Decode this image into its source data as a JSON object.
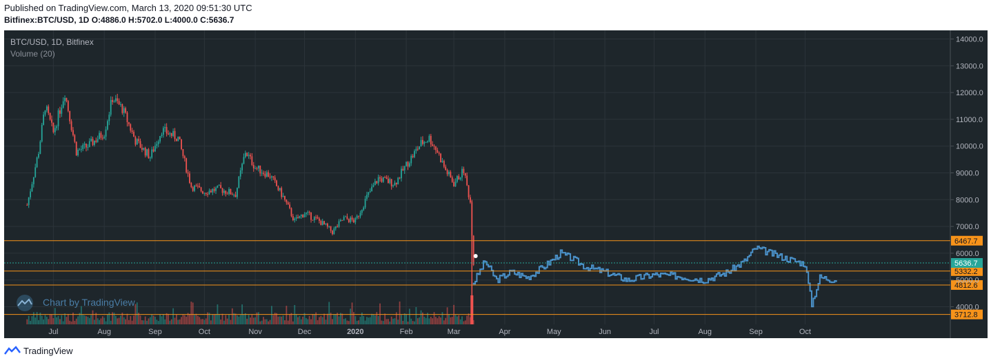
{
  "header": {
    "published": "Published on TradingView.com, March 13, 2020 09:51:30 UTC",
    "symbol": "Bitfinex:BTC/USD, 1D",
    "ohlc": "O:4886.0 H:5702.0 L:4000.0 C:5636.7"
  },
  "legend": {
    "title": "BTC/USD, 1D, Bitfinex",
    "volume": "Volume (20)"
  },
  "watermark": "Chart by TradingView",
  "footer": {
    "brand": "TradingView"
  },
  "colors": {
    "background": "#1e262b",
    "up": "#26a69a",
    "down": "#ef5350",
    "projection": "#4a90c8",
    "level": "#f7931a",
    "current": "#26a69a"
  },
  "chart_data": {
    "type": "line",
    "title": "BTC/USD, 1D, Bitfinex",
    "ylim": [
      3600,
      14300
    ],
    "x_ticks": [
      "Jul",
      "Aug",
      "Sep",
      "Oct",
      "Nov",
      "Dec",
      "2020",
      "Feb",
      "Mar",
      "Apr",
      "May",
      "Jun",
      "Jul",
      "Aug",
      "Sep",
      "Oct"
    ],
    "y_ticks": [
      "14000.0",
      "13000.0",
      "12000.0",
      "11000.0",
      "10000.0",
      "9000.0",
      "8000.0",
      "7000.0",
      "6000.0",
      "5000.0",
      "4000.0"
    ],
    "series": [
      {
        "kind": "historical",
        "x": [
          "Jun 15",
          "Jun 22",
          "Jun 26",
          "Jul 1",
          "Jul 8",
          "Jul 15",
          "Jul 22",
          "Aug 1",
          "Aug 6",
          "Aug 12",
          "Aug 20",
          "Aug 29",
          "Sep 5",
          "Sep 15",
          "Sep 23",
          "Oct 1",
          "Oct 10",
          "Oct 20",
          "Oct 26",
          "Nov 1",
          "Nov 10",
          "Nov 18",
          "Nov 25",
          "Dec 1",
          "Dec 10",
          "Dec 18",
          "Dec 25",
          "Jan 1",
          "Jan 8",
          "Jan 15",
          "Jan 25",
          "Feb 1",
          "Feb 10",
          "Feb 15",
          "Feb 20",
          "Feb 25",
          "Mar 1",
          "Mar 7",
          "Mar 11",
          "Mar 13"
        ],
        "values": [
          7800,
          9800,
          11500,
          10500,
          12000,
          9800,
          10000,
          10500,
          11800,
          11400,
          10200,
          9600,
          10600,
          10300,
          8500,
          8300,
          8400,
          8200,
          9800,
          9200,
          8900,
          8100,
          7200,
          7500,
          7200,
          6800,
          7300,
          7200,
          8100,
          8800,
          8600,
          9300,
          10100,
          10300,
          9800,
          9100,
          8600,
          9100,
          7900,
          5636.7
        ]
      },
      {
        "kind": "projection",
        "x": [
          "Mar 13",
          "Mar 20",
          "Mar 27",
          "Apr 5",
          "Apr 15",
          "Apr 25",
          "May 5",
          "May 12",
          "May 20",
          "Jun 1",
          "Jun 15",
          "Jul 1",
          "Jul 15",
          "Aug 1",
          "Aug 15",
          "Aug 25",
          "Sep 1",
          "Sep 10",
          "Sep 20",
          "Oct 1",
          "Oct 5",
          "Oct 10",
          "Oct 20"
        ],
        "values": [
          4900,
          5700,
          5000,
          5300,
          5100,
          5500,
          6000,
          5800,
          5500,
          5300,
          5000,
          5200,
          5150,
          5000,
          5300,
          5700,
          6200,
          6000,
          5800,
          5600,
          4100,
          5100,
          5000
        ]
      }
    ],
    "levels": [
      {
        "label": "6467.7",
        "value": 6467.7
      },
      {
        "label": "5332.2",
        "value": 5332.2
      },
      {
        "label": "4812.6",
        "value": 4812.6
      },
      {
        "label": "3712.8",
        "value": 3712.8
      }
    ],
    "current_price": {
      "label": "5636.7",
      "value": 5636.7
    }
  }
}
